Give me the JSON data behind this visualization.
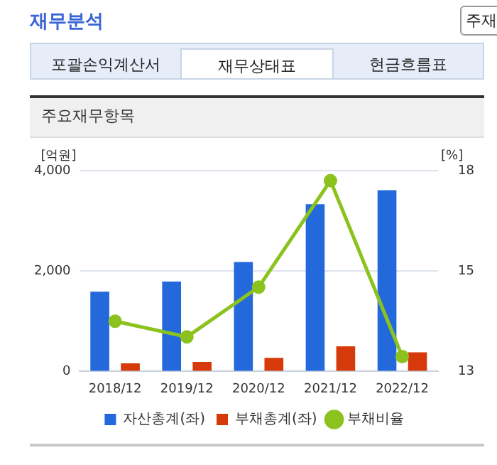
{
  "chart_data": {
    "type": "bar",
    "title": "재무분석",
    "subtitle": "주요재무항목",
    "ylabel": "[억원]",
    "y2label": "[%]",
    "annotations": [
      "포괄손익계산서",
      "재무상태표",
      "현금흐름표",
      "주재"
    ],
    "categories": [
      "2018/12",
      "2019/12",
      "2020/12",
      "2021/12",
      "2022/12"
    ],
    "series": [
      {
        "name": "자산총계(좌)",
        "color": "#2369dc",
        "values": [
          1590,
          1790,
          2180,
          3330,
          3610
        ]
      },
      {
        "name": "부채총계(좌)",
        "color": "#d63a0a",
        "values": [
          160,
          190,
          270,
          500,
          380
        ]
      },
      {
        "name": "부채비율",
        "type": "line",
        "axis": "y2",
        "color": "#8cc21e",
        "values": [
          14.25,
          13.86,
          15.1,
          17.75,
          13.37
        ]
      }
    ],
    "ylim": [
      0,
      4000
    ],
    "yticks": [
      0,
      {
        "value": 2000,
        "label": "2,000"
      },
      {
        "value": 4000,
        "label": "4,000"
      }
    ],
    "y2lim": [
      13,
      18
    ],
    "y2ticks": [
      13,
      {
        "value": 15.5,
        "label": "15"
      },
      18
    ],
    "grid": "y",
    "legend": "bottom",
    "marker": "circle"
  }
}
